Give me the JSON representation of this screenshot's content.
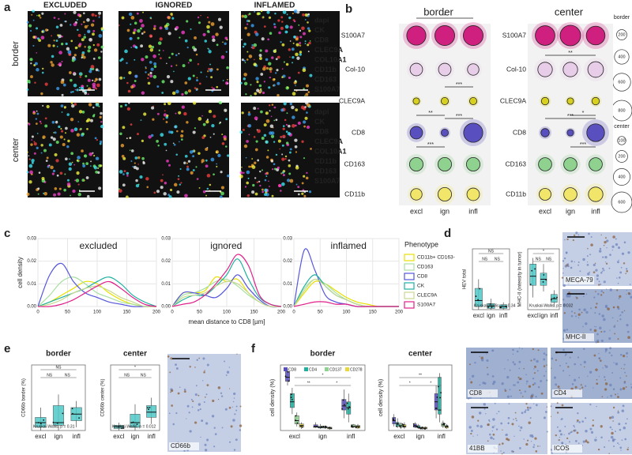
{
  "panel_labels": [
    "a",
    "b",
    "c",
    "d",
    "e",
    "f"
  ],
  "panel_a": {
    "columns": [
      "EXCLUDED",
      "IGNORED",
      "INFLAMED"
    ],
    "rows": [
      "border",
      "center"
    ],
    "markers": [
      "dapi",
      "CK",
      "CD8",
      "CLEC9A",
      "COL10A1",
      "CD11b",
      "CD163",
      "S100A7"
    ],
    "marker_colors": [
      "#3fa9ff",
      "#3ff0ff",
      "#ff4040",
      "#ffff40",
      "#ffffff",
      "#ffaa30",
      "#70ff70",
      "#ff40d0"
    ]
  },
  "images": {
    "d": [
      "MECA-79",
      "MHC-II"
    ],
    "e": [
      "CD66b"
    ],
    "f": [
      "CD8",
      "CD4",
      "41BB",
      "ICOS"
    ]
  },
  "chart_data": [
    {
      "type": "bubble",
      "title": "border",
      "categories": [
        "excl",
        "ign",
        "infl"
      ],
      "series": [
        {
          "name": "S100A7",
          "color": "#d0207f",
          "values": [
            700,
            750,
            750
          ]
        },
        {
          "name": "Col-10",
          "color": "#e8cde8",
          "values": [
            300,
            300,
            250
          ]
        },
        {
          "name": "CLEC9A",
          "color": "#d8d020",
          "values": [
            80,
            100,
            100
          ]
        },
        {
          "name": "CD8",
          "color": "#5a4fbf",
          "values": [
            300,
            100,
            700
          ]
        },
        {
          "name": "CD163",
          "color": "#8fd18f",
          "values": [
            350,
            350,
            350
          ]
        },
        {
          "name": "CD11b",
          "color": "#f2e66a",
          "values": [
            250,
            350,
            300
          ]
        }
      ],
      "significance": [
        "*",
        "**",
        "***",
        "***",
        "***"
      ],
      "size_legend": {
        "title": "border",
        "values": [
          200,
          400,
          600,
          800
        ]
      }
    },
    {
      "type": "bubble",
      "title": "center",
      "categories": [
        "excl",
        "ign",
        "infl"
      ],
      "series": [
        {
          "name": "S100A7",
          "color": "#d0207f",
          "values": [
            550,
            600,
            500
          ]
        },
        {
          "name": "Col-10",
          "color": "#e8cde8",
          "values": [
            300,
            300,
            350
          ]
        },
        {
          "name": "CLEC9A",
          "color": "#d8d020",
          "values": [
            80,
            60,
            80
          ]
        },
        {
          "name": "CD8",
          "color": "#5a4fbf",
          "values": [
            100,
            60,
            450
          ]
        },
        {
          "name": "CD163",
          "color": "#8fd18f",
          "values": [
            250,
            250,
            250
          ]
        },
        {
          "name": "CD11b",
          "color": "#f2e66a",
          "values": [
            200,
            250,
            300
          ]
        }
      ],
      "significance": [
        "**",
        "*",
        "***",
        "***"
      ],
      "size_legend": {
        "title": "center",
        "values": [
          100,
          200,
          400,
          600
        ]
      }
    },
    {
      "type": "line",
      "title": "excluded",
      "ylabel": "cell density",
      "legend_title": "Phenotype",
      "x": [
        0,
        20,
        40,
        60,
        80,
        100,
        120,
        140,
        160,
        180,
        200
      ],
      "xlim": [
        0,
        200
      ],
      "xticks": [
        0,
        50,
        100,
        150,
        200
      ],
      "ylim": [
        0,
        0.03
      ],
      "yticks": [
        {
          "value": 0,
          "label": "0.00"
        },
        {
          "value": 0.01,
          "label": "0.01"
        },
        {
          "value": 0.02,
          "label": "0.02"
        },
        {
          "value": 0.03,
          "label": "0.03"
        }
      ],
      "series": [
        {
          "name": "CD11b+ CD163-",
          "color": "#e8e000",
          "values": [
            0,
            0.002,
            0.005,
            0.008,
            0.011,
            0.01,
            0.006,
            0.003,
            0.001,
            0,
            0
          ]
        },
        {
          "name": "CD163",
          "color": "#a8e0a0",
          "values": [
            0,
            0.005,
            0.011,
            0.013,
            0.01,
            0.006,
            0.004,
            0.002,
            0.001,
            0,
            0
          ]
        },
        {
          "name": "CD8",
          "color": "#5555dd",
          "values": [
            0,
            0.014,
            0.019,
            0.011,
            0.006,
            0.004,
            0.002,
            0.001,
            0,
            0,
            0
          ]
        },
        {
          "name": "CK",
          "color": "#20b0a0",
          "values": [
            0,
            0.002,
            0.004,
            0.006,
            0.008,
            0.011,
            0.013,
            0.01,
            0.005,
            0.002,
            0
          ]
        },
        {
          "name": "CLEC9A",
          "color": "#c8d890",
          "values": [
            0,
            0.001,
            0.003,
            0.006,
            0.008,
            0.009,
            0.007,
            0.004,
            0.002,
            0,
            0
          ]
        },
        {
          "name": "S100A7",
          "color": "#e0208a",
          "values": [
            0,
            0,
            0.001,
            0.003,
            0.006,
            0.009,
            0.011,
            0.008,
            0.004,
            0.001,
            0
          ]
        }
      ]
    },
    {
      "type": "line",
      "title": "ignored",
      "xlabel": "mean distance to CD8 [µm]",
      "x": [
        0,
        20,
        40,
        60,
        80,
        100,
        120,
        140,
        160,
        180,
        200
      ],
      "xlim": [
        0,
        200
      ],
      "xticks": [
        0,
        50,
        100,
        150,
        200
      ],
      "ylim": [
        0,
        0.03
      ],
      "yticks": [
        {
          "value": 0,
          "label": "0.00"
        },
        {
          "value": 0.01,
          "label": "0.01"
        },
        {
          "value": 0.02,
          "label": "0.02"
        },
        {
          "value": 0.03,
          "label": "0.03"
        }
      ],
      "series": [
        {
          "name": "CD11b+ CD163-",
          "color": "#e8e000",
          "values": [
            0,
            0.006,
            0.006,
            0.007,
            0.013,
            0.011,
            0.012,
            0.006,
            0.002,
            0,
            0
          ]
        },
        {
          "name": "CD163",
          "color": "#a8e0a0",
          "values": [
            0,
            0.005,
            0.006,
            0.008,
            0.011,
            0.012,
            0.009,
            0.005,
            0.002,
            0,
            0
          ]
        },
        {
          "name": "CD8",
          "color": "#5555dd",
          "values": [
            0,
            0.006,
            0.006,
            0.005,
            0.004,
            0.008,
            0.014,
            0.008,
            0.003,
            0,
            0
          ]
        },
        {
          "name": "CK",
          "color": "#20b0a0",
          "values": [
            0,
            0.003,
            0.005,
            0.005,
            0.009,
            0.014,
            0.021,
            0.012,
            0.004,
            0.001,
            0
          ]
        },
        {
          "name": "CLEC9A",
          "color": "#c8d890",
          "values": [
            0,
            0.004,
            0.005,
            0.006,
            0.009,
            0.011,
            0.01,
            0.006,
            0.002,
            0,
            0
          ]
        },
        {
          "name": "S100A7",
          "color": "#e0208a",
          "values": [
            0,
            0.001,
            0.002,
            0.005,
            0.01,
            0.016,
            0.023,
            0.018,
            0.005,
            0.001,
            0
          ]
        }
      ]
    },
    {
      "type": "line",
      "title": "inflamed",
      "x": [
        0,
        20,
        40,
        60,
        80,
        100,
        120,
        140,
        160,
        180,
        200
      ],
      "xlim": [
        0,
        200
      ],
      "xticks": [
        0,
        50,
        100,
        150,
        200
      ],
      "ylim": [
        0,
        0.03
      ],
      "yticks": [
        {
          "value": 0,
          "label": "0.00"
        },
        {
          "value": 0.01,
          "label": "0.01"
        },
        {
          "value": 0.02,
          "label": "0.02"
        },
        {
          "value": 0.03,
          "label": "0.03"
        }
      ],
      "series": [
        {
          "name": "CD11b+ CD163-",
          "color": "#e8e000",
          "values": [
            0,
            0.006,
            0.011,
            0.01,
            0.007,
            0.004,
            0.002,
            0.001,
            0,
            0,
            0
          ]
        },
        {
          "name": "CD163",
          "color": "#a8e0a0",
          "values": [
            0,
            0.008,
            0.012,
            0.01,
            0.006,
            0.003,
            0.001,
            0,
            0,
            0,
            0
          ]
        },
        {
          "name": "CD8",
          "color": "#5555dd",
          "values": [
            0,
            0.025,
            0.016,
            0.005,
            0.002,
            0.001,
            0,
            0,
            0,
            0,
            0
          ]
        },
        {
          "name": "CK",
          "color": "#20b0a0",
          "values": [
            0,
            0.009,
            0.014,
            0.009,
            0.005,
            0.003,
            0.001,
            0,
            0,
            0,
            0
          ]
        },
        {
          "name": "CLEC9A",
          "color": "#c8d890",
          "values": [
            0,
            0.007,
            0.012,
            0.009,
            0.005,
            0.003,
            0.001,
            0,
            0,
            0,
            0
          ]
        },
        {
          "name": "S100A7",
          "color": "#e0208a",
          "values": [
            0,
            0.001,
            0.002,
            0.002,
            0.001,
            0.001,
            0,
            0,
            0,
            0,
            0
          ]
        }
      ]
    },
    {
      "type": "box",
      "ylabel": "HEV total",
      "categories": [
        "excl",
        "ign",
        "infl"
      ],
      "ylim": [
        0,
        100
      ],
      "series": [
        {
          "color": "#4fc8c8",
          "boxes": [
            {
              "low": 0,
              "q1": 5,
              "median": 15,
              "q3": 35,
              "high": 50
            },
            {
              "low": 0,
              "q1": 2,
              "median": 6,
              "q3": 10,
              "high": 18
            },
            {
              "low": 0,
              "q1": 2,
              "median": 5,
              "q3": 8,
              "high": 12
            }
          ]
        }
      ],
      "significance": [
        "NS",
        "NS",
        "NS"
      ],
      "test": "Kruskal-Wallis, p = 0.34"
    },
    {
      "type": "box",
      "ylabel": "MHC-II (intensity in tumor)",
      "categories": [
        "excl",
        "ign",
        "infl"
      ],
      "ylim": [
        0,
        100
      ],
      "series": [
        {
          "color": "#4fc8c8",
          "boxes": [
            {
              "low": 20,
              "q1": 40,
              "median": 55,
              "q3": 75,
              "high": 85
            },
            {
              "low": 30,
              "q1": 40,
              "median": 50,
              "q3": 60,
              "high": 75
            },
            {
              "low": 5,
              "q1": 12,
              "median": 18,
              "q3": 25,
              "high": 32
            }
          ]
        }
      ],
      "significance": [
        "NS",
        "NS",
        "*"
      ],
      "test": "Kruskal-Wallis, p = 0.032"
    },
    {
      "type": "box",
      "title": "border",
      "ylabel": "CD66b border (%)",
      "categories": [
        "excl",
        "ign",
        "infl"
      ],
      "ylim": [
        0,
        100
      ],
      "series": [
        {
          "color": "#4fc8c8",
          "boxes": [
            {
              "low": 0,
              "q1": 5,
              "median": 12,
              "q3": 20,
              "high": 35
            },
            {
              "low": 0,
              "q1": 8,
              "median": 12,
              "q3": 38,
              "high": 55
            },
            {
              "low": 5,
              "q1": 15,
              "median": 25,
              "q3": 35,
              "high": 45
            }
          ]
        }
      ],
      "significance": [
        "NS",
        "NS",
        "NS"
      ],
      "test": "Kruskal-Wallis, p = 0.31"
    },
    {
      "type": "box",
      "title": "center",
      "ylabel": "CD66b center (%)",
      "categories": [
        "excl",
        "ign",
        "infl"
      ],
      "ylim": [
        0,
        100
      ],
      "series": [
        {
          "color": "#4fc8c8",
          "boxes": [
            {
              "low": 0,
              "q1": 3,
              "median": 6,
              "q3": 8,
              "high": 12
            },
            {
              "low": 0,
              "q1": 5,
              "median": 12,
              "q3": 25,
              "high": 40
            },
            {
              "low": 10,
              "q1": 20,
              "median": 28,
              "q3": 38,
              "high": 50
            }
          ]
        }
      ],
      "significance": [
        "NS",
        "NS",
        "*"
      ],
      "test": "Kruskal-Wallis, p = 0.012"
    },
    {
      "type": "box",
      "title": "border",
      "ylabel": "cell density (%)",
      "categories": [
        "excl",
        "ign",
        "infl"
      ],
      "ylim": [
        0,
        80
      ],
      "series": [
        {
          "name": "CD8",
          "color": "#5a4fbf",
          "boxes": [
            {
              "low": 55,
              "q1": 60,
              "median": 65,
              "q3": 72,
              "high": 75
            },
            {
              "low": 3,
              "q1": 4,
              "median": 5,
              "q3": 7,
              "high": 10
            },
            {
              "low": 15,
              "q1": 25,
              "median": 30,
              "q3": 38,
              "high": 50
            }
          ]
        },
        {
          "name": "CD4",
          "color": "#20b0a0",
          "boxes": [
            {
              "low": 20,
              "q1": 28,
              "median": 35,
              "q3": 45,
              "high": 52
            },
            {
              "low": 2,
              "q1": 3,
              "median": 4,
              "q3": 5,
              "high": 8
            },
            {
              "low": 10,
              "q1": 20,
              "median": 28,
              "q3": 35,
              "high": 45
            }
          ]
        },
        {
          "name": "CD137",
          "color": "#8fd18f",
          "boxes": [
            {
              "low": 5,
              "q1": 8,
              "median": 12,
              "q3": 18,
              "high": 22
            },
            {
              "low": 2,
              "q1": 3,
              "median": 4,
              "q3": 5,
              "high": 6
            },
            {
              "low": 3,
              "q1": 4,
              "median": 5,
              "q3": 7,
              "high": 8
            }
          ]
        },
        {
          "name": "CD278",
          "color": "#e8d840",
          "boxes": [
            {
              "low": 2,
              "q1": 4,
              "median": 6,
              "q3": 8,
              "high": 10
            },
            {
              "low": 1,
              "q1": 2,
              "median": 3,
              "q3": 4,
              "high": 5
            },
            {
              "low": 2,
              "q1": 3,
              "median": 5,
              "q3": 6,
              "high": 8
            }
          ]
        }
      ],
      "significance": [
        "**",
        "*",
        "*"
      ]
    },
    {
      "type": "box",
      "title": "center",
      "ylabel": "cell density (%)",
      "categories": [
        "excl",
        "ign",
        "infl"
      ],
      "ylim": [
        0,
        80
      ],
      "series": [
        {
          "color": "#5a4fbf",
          "boxes": [
            {
              "low": 5,
              "q1": 8,
              "median": 12,
              "q3": 16,
              "high": 20
            },
            {
              "low": 3,
              "q1": 4,
              "median": 6,
              "q3": 8,
              "high": 10
            },
            {
              "low": 15,
              "q1": 25,
              "median": 35,
              "q3": 45,
              "high": 55
            }
          ]
        },
        {
          "color": "#20b0a0",
          "boxes": [
            {
              "low": 3,
              "q1": 5,
              "median": 8,
              "q3": 10,
              "high": 15
            },
            {
              "low": 2,
              "q1": 3,
              "median": 4,
              "q3": 6,
              "high": 8
            },
            {
              "low": 10,
              "q1": 20,
              "median": 25,
              "q3": 65,
              "high": 70
            }
          ]
        },
        {
          "color": "#8fd18f",
          "boxes": [
            {
              "low": 2,
              "q1": 4,
              "median": 6,
              "q3": 8,
              "high": 10
            },
            {
              "low": 1,
              "q1": 2,
              "median": 3,
              "q3": 4,
              "high": 5
            },
            {
              "low": 3,
              "q1": 5,
              "median": 7,
              "q3": 9,
              "high": 12
            }
          ]
        },
        {
          "color": "#e8d840",
          "boxes": [
            {
              "low": 2,
              "q1": 4,
              "median": 5,
              "q3": 7,
              "high": 10
            },
            {
              "low": 1,
              "q1": 2,
              "median": 3,
              "q3": 4,
              "high": 5
            },
            {
              "low": 2,
              "q1": 3,
              "median": 5,
              "q3": 6,
              "high": 8
            }
          ]
        }
      ],
      "significance": [
        "*",
        "*",
        "**"
      ]
    }
  ]
}
